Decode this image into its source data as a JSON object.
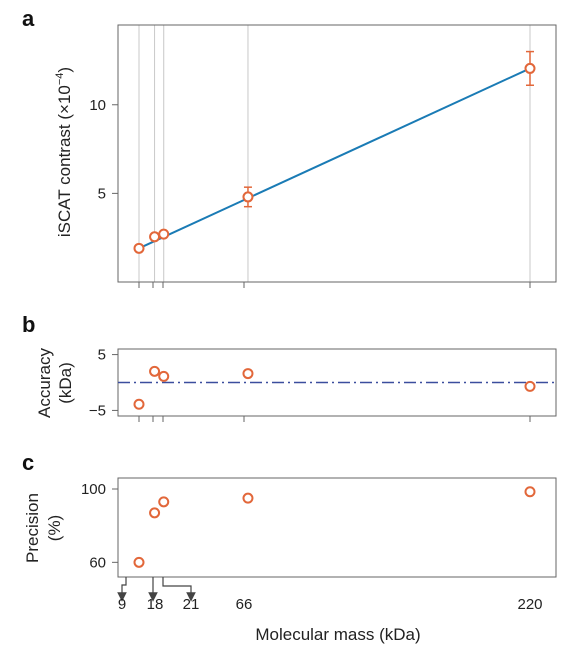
{
  "figure": {
    "x_tick_labels": [
      "9",
      "18",
      "21",
      "66",
      "220"
    ],
    "x_axis_label": "Molecular mass (kDa)",
    "colors": {
      "marker": "#e2673a",
      "fit_line": "#1a7bb5",
      "zero_line": "#3b4e9e",
      "frame": "#666666",
      "gridline": "#c8c8c8",
      "arrows": "#444444"
    }
  },
  "chart_data": [
    {
      "panel": "a",
      "type": "scatter",
      "ylabel_main": "iSCAT contrast (×10",
      "ylabel_exp": "−4",
      "ylabel_close": ")",
      "ylim": [
        0,
        14.5
      ],
      "yticks": [
        5,
        10
      ],
      "ytick_labels": [
        "5",
        "10"
      ],
      "grid": "vertical lines at marker masses",
      "points": [
        {
          "x": 6.5,
          "y": 1.9,
          "err": 0
        },
        {
          "x": 15,
          "y": 2.55,
          "err": 0
        },
        {
          "x": 20,
          "y": 2.7,
          "err": 0
        },
        {
          "x": 66,
          "y": 4.8,
          "err": 0.55
        },
        {
          "x": 220,
          "y": 12.05,
          "err": 0.95
        }
      ],
      "fit_line": {
        "x": [
          6.5,
          220
        ],
        "y": [
          1.9,
          12.05
        ]
      }
    },
    {
      "panel": "b",
      "type": "scatter",
      "ylabel_line1": "Accuracy",
      "ylabel_line2": "(kDa)",
      "ylim": [
        -6,
        6
      ],
      "yticks": [
        5,
        -5
      ],
      "ytick_labels": [
        "5",
        "−5"
      ],
      "reference_line_y": 0,
      "points": [
        {
          "x": 6.5,
          "y": -3.9
        },
        {
          "x": 15,
          "y": 2.0
        },
        {
          "x": 20,
          "y": 1.1
        },
        {
          "x": 66,
          "y": 1.6
        },
        {
          "x": 220,
          "y": -0.7
        }
      ]
    },
    {
      "panel": "c",
      "type": "scatter",
      "ylabel_line1": "Precision",
      "ylabel_line2": "(%)",
      "ylim": [
        52,
        106
      ],
      "yticks": [
        100,
        60
      ],
      "ytick_labels": [
        "100",
        "60"
      ],
      "points": [
        {
          "x": 6.5,
          "y": 60
        },
        {
          "x": 15,
          "y": 87
        },
        {
          "x": 20,
          "y": 93
        },
        {
          "x": 66,
          "y": 95
        },
        {
          "x": 220,
          "y": 98.5
        }
      ]
    }
  ]
}
